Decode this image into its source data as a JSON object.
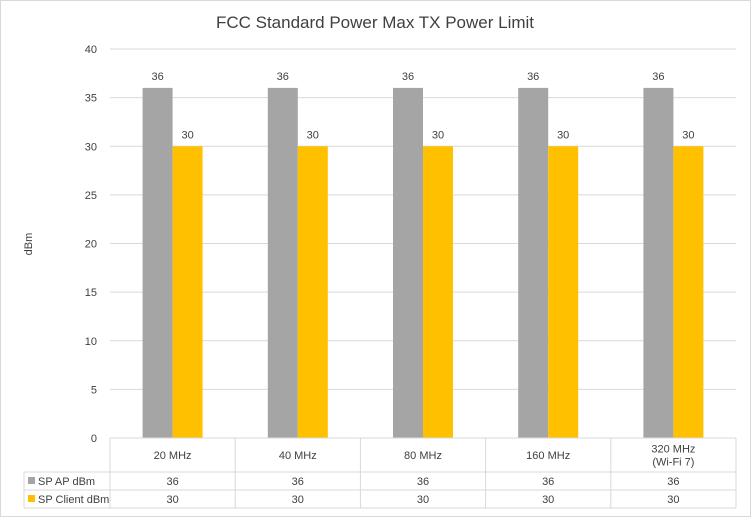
{
  "chart_data": {
    "type": "bar",
    "title": "FCC Standard Power Max TX Power Limit",
    "ylabel": "dBm",
    "xlabel": "",
    "ylim": [
      0,
      40
    ],
    "yticks": [
      0,
      5,
      10,
      15,
      20,
      25,
      30,
      35,
      40
    ],
    "grid": true,
    "legend": "data-table",
    "categories": [
      [
        "20 MHz"
      ],
      [
        "40 MHz"
      ],
      [
        "80 MHz"
      ],
      [
        "160 MHz"
      ],
      [
        "320 MHz",
        "(Wi-Fi 7)"
      ]
    ],
    "series": [
      {
        "name": "SP AP dBm",
        "color": "#a5a5a5",
        "values": [
          36,
          36,
          36,
          36,
          36
        ]
      },
      {
        "name": "SP Client dBm",
        "color": "#ffc000",
        "values": [
          30,
          30,
          30,
          30,
          30
        ]
      }
    ]
  }
}
